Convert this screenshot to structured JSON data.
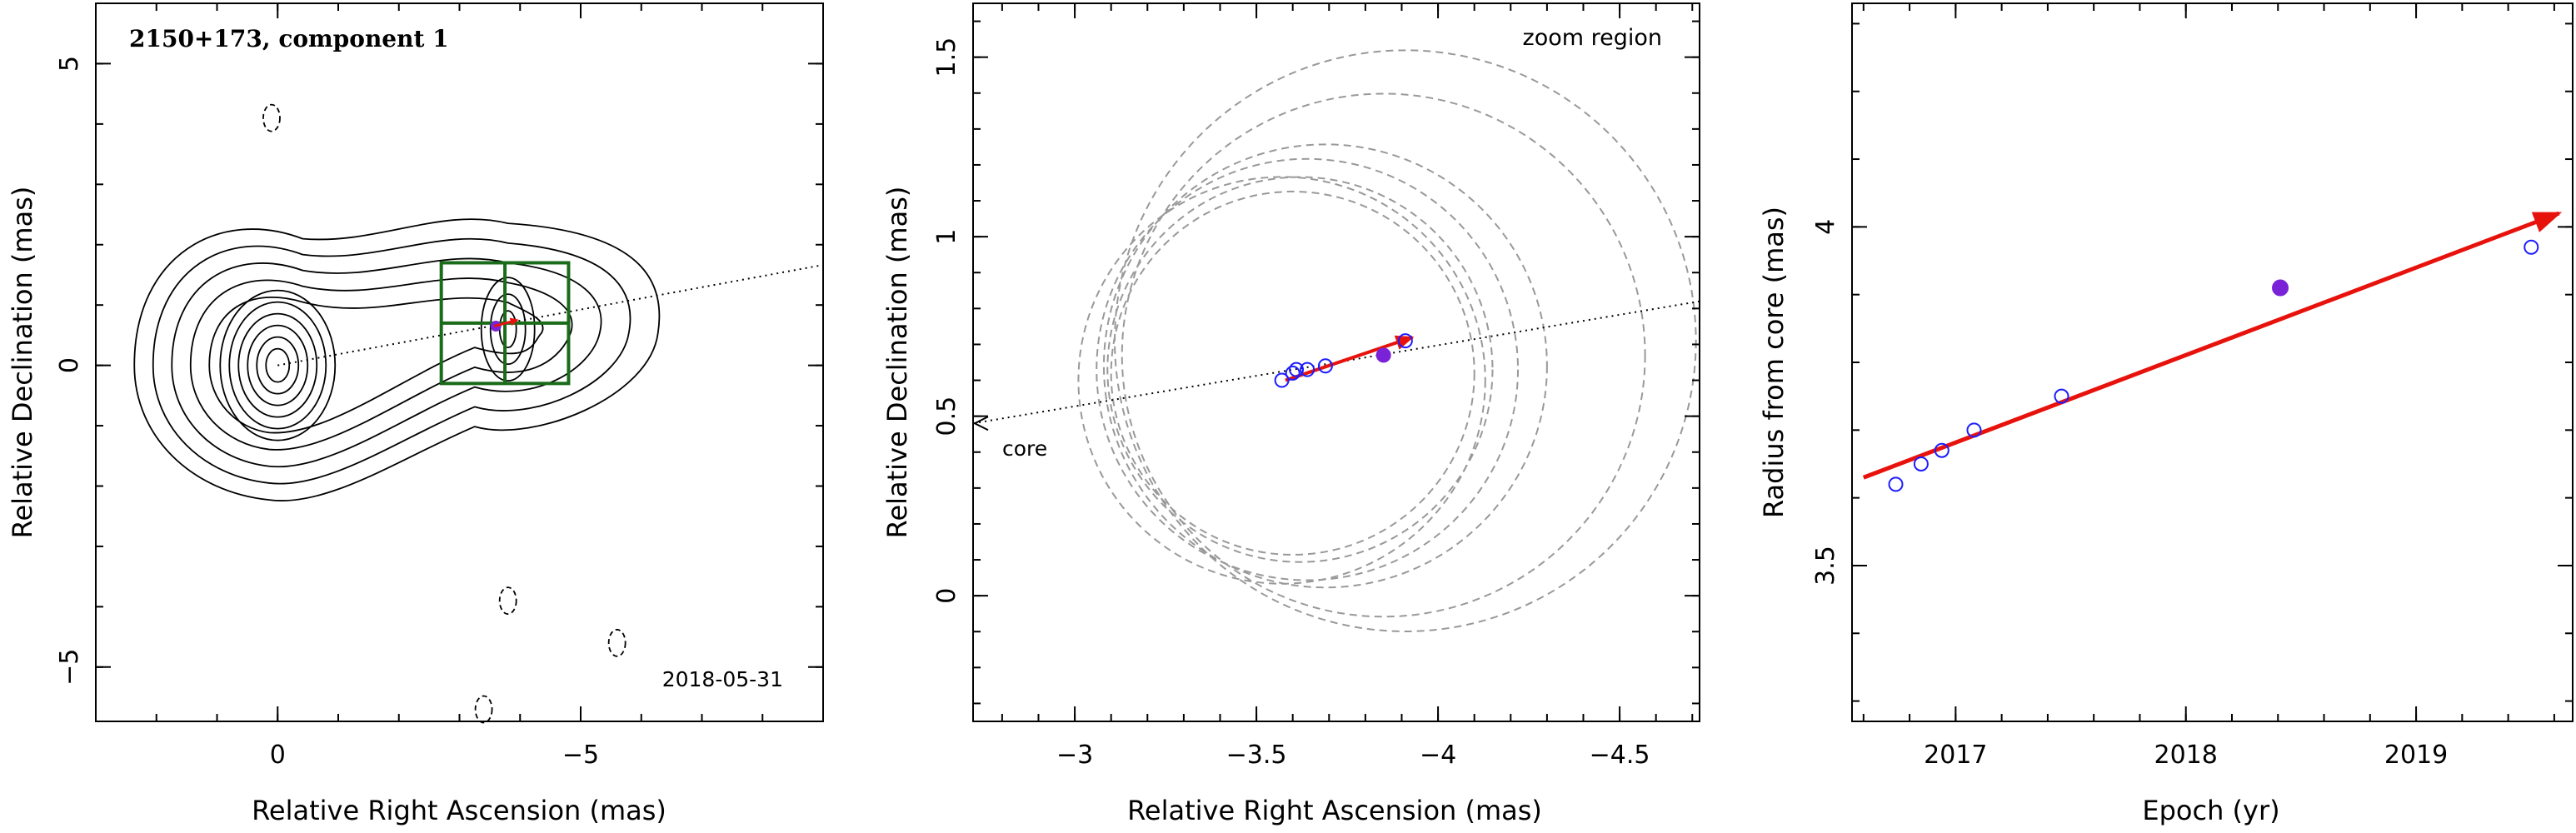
{
  "chart_data": [
    {
      "type": "scatter",
      "title": "2150+173, component 1",
      "annotation": "2018-05-31",
      "xlabel": "Relative Right Ascension (mas)",
      "ylabel": "Relative Declination (mas)",
      "x_ticks": [
        "0",
        "−5"
      ],
      "x_tick_values": [
        0,
        -5
      ],
      "y_ticks": [
        "5",
        "0",
        "−5"
      ],
      "y_tick_values": [
        5,
        0,
        -5
      ],
      "xlim": [
        3.0,
        -9.0
      ],
      "ylim": [
        -5.9,
        6.0
      ],
      "x_reversed": true,
      "contours": {
        "core": [
          0,
          0
        ],
        "positive_levels": 11,
        "negative_islands": [
          {
            "x": 0.1,
            "y": 4.1
          },
          {
            "x": -3.8,
            "y": -3.9
          },
          {
            "x": -5.6,
            "y": -4.6
          },
          {
            "x": -3.4,
            "y": -5.7
          }
        ]
      },
      "zoom_box": {
        "x_range": [
          -2.7,
          -4.8
        ],
        "y_range": [
          -0.3,
          1.7
        ]
      },
      "jet_direction_line": {
        "from": [
          0,
          0
        ],
        "slope": -0.185
      },
      "component_marker": {
        "x": -3.6,
        "y": 0.65
      },
      "colors": {
        "contours": "#000000",
        "box": "#1a6b1a",
        "arrow": "#e8120c",
        "marker": "#7a22d8"
      }
    },
    {
      "type": "scatter",
      "title": "zoom region",
      "xlabel": "Relative Right Ascension (mas)",
      "ylabel": "Relative Declination (mas)",
      "x_ticks": [
        "−3",
        "−3.5",
        "−4",
        "−4.5"
      ],
      "x_tick_values": [
        -3,
        -3.5,
        -4,
        -4.5
      ],
      "y_ticks": [
        "0",
        "0.5",
        "1",
        "1.5"
      ],
      "y_tick_values": [
        0,
        0.5,
        1,
        1.5
      ],
      "xlim": [
        -2.72,
        -4.72
      ],
      "ylim": [
        -0.35,
        1.65
      ],
      "x_reversed": true,
      "core_label": "core",
      "core_arrow_tip": {
        "x": -2.72,
        "y": 0.48
      },
      "open_points": [
        {
          "x": -3.57,
          "y": 0.6
        },
        {
          "x": -3.6,
          "y": 0.62
        },
        {
          "x": -3.61,
          "y": 0.63
        },
        {
          "x": -3.64,
          "y": 0.63
        },
        {
          "x": -3.69,
          "y": 0.64
        },
        {
          "x": -3.91,
          "y": 0.71
        }
      ],
      "filled_points": [
        {
          "x": -3.85,
          "y": 0.67
        }
      ],
      "error_circles": [
        {
          "x": -3.57,
          "y": 0.6,
          "r": 0.56
        },
        {
          "x": -3.6,
          "y": 0.62,
          "r": 0.5
        },
        {
          "x": -3.62,
          "y": 0.63,
          "r": 0.53
        },
        {
          "x": -3.64,
          "y": 0.63,
          "r": 0.58
        },
        {
          "x": -3.69,
          "y": 0.64,
          "r": 0.61
        },
        {
          "x": -3.91,
          "y": 0.71,
          "r": 0.8
        },
        {
          "x": -3.85,
          "y": 0.67,
          "r": 0.72
        }
      ],
      "velocity_arrow": {
        "from": [
          -3.58,
          0.6
        ],
        "to": [
          -3.93,
          0.72
        ]
      },
      "jet_direction_line": {
        "from": [
          -2.72,
          0.48
        ],
        "to": [
          -4.72,
          0.82
        ]
      },
      "colors": {
        "points": "#1c1cff",
        "filled": "#7a22d8",
        "circles": "#999999",
        "arrow": "#e8120c"
      }
    },
    {
      "type": "scatter",
      "xlabel": "Epoch (yr)",
      "ylabel": "Radius from core (mas)",
      "x_ticks": [
        "2017",
        "2018",
        "2019"
      ],
      "x_tick_values": [
        2017,
        2018,
        2019
      ],
      "y_ticks": [
        "3.5",
        "4"
      ],
      "y_tick_values": [
        3.5,
        4
      ],
      "xlim": [
        2016.55,
        2019.68
      ],
      "ylim": [
        3.27,
        4.33
      ],
      "open_points": [
        {
          "x": 2016.74,
          "y": 3.62
        },
        {
          "x": 2016.85,
          "y": 3.65
        },
        {
          "x": 2016.94,
          "y": 3.67
        },
        {
          "x": 2017.08,
          "y": 3.7
        },
        {
          "x": 2017.46,
          "y": 3.75
        },
        {
          "x": 2019.5,
          "y": 3.97
        }
      ],
      "filled_points": [
        {
          "x": 2018.41,
          "y": 3.91
        }
      ],
      "fit_line": {
        "from": [
          2016.6,
          3.63
        ],
        "to": [
          2019.62,
          4.02
        ]
      },
      "colors": {
        "points": "#1c1cff",
        "filled": "#7a22d8",
        "fit": "#e8120c"
      }
    }
  ]
}
